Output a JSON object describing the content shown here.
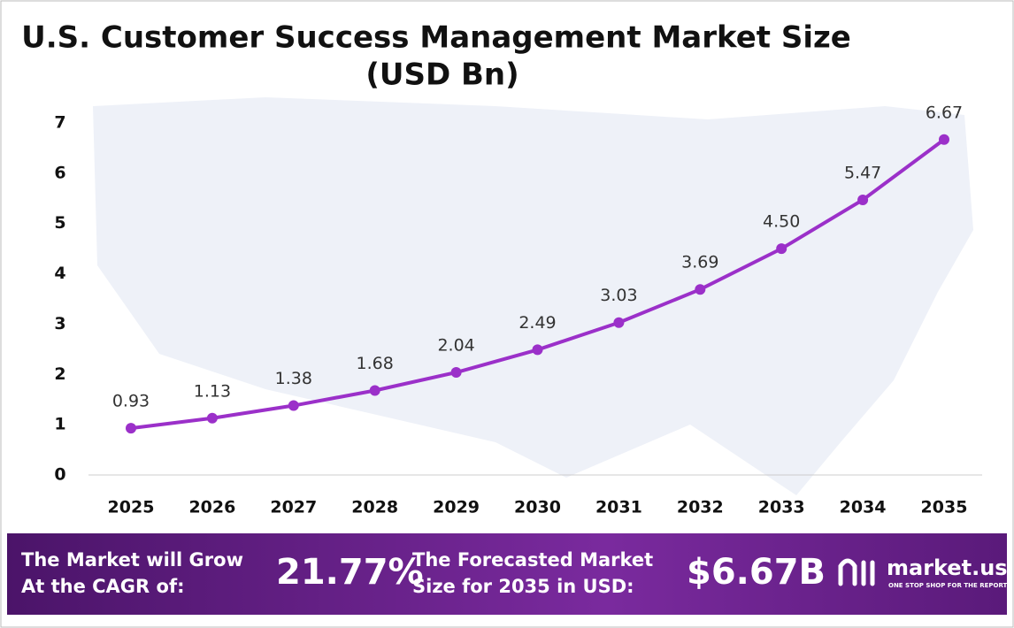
{
  "chart_data": {
    "type": "line",
    "title": "U.S. Customer Success Management Market Size",
    "subtitle": "(USD Bn)",
    "categories": [
      "2025",
      "2026",
      "2027",
      "2028",
      "2029",
      "2030",
      "2031",
      "2032",
      "2033",
      "2034",
      "2035"
    ],
    "values": [
      0.93,
      1.13,
      1.38,
      1.68,
      2.04,
      2.49,
      3.03,
      3.69,
      4.5,
      5.47,
      6.67
    ],
    "value_labels": [
      "0.93",
      "1.13",
      "1.38",
      "1.68",
      "2.04",
      "2.49",
      "3.03",
      "3.69",
      "4.50",
      "5.47",
      "6.67"
    ],
    "color": "#9b30c9",
    "ylim": [
      0,
      7
    ],
    "yticks": [
      0,
      1,
      2,
      3,
      4,
      5,
      6,
      7
    ],
    "grid": false
  },
  "footer": {
    "cagr_label": [
      "The Market will Grow",
      "At the CAGR of:"
    ],
    "cagr_value": "21.77%",
    "forecast_label": [
      "The Forecasted Market",
      "Size for 2035 in USD:"
    ],
    "forecast_value": "$6.67B",
    "brand": "market.us",
    "tagline": "ONE STOP SHOP FOR THE REPORTS"
  }
}
